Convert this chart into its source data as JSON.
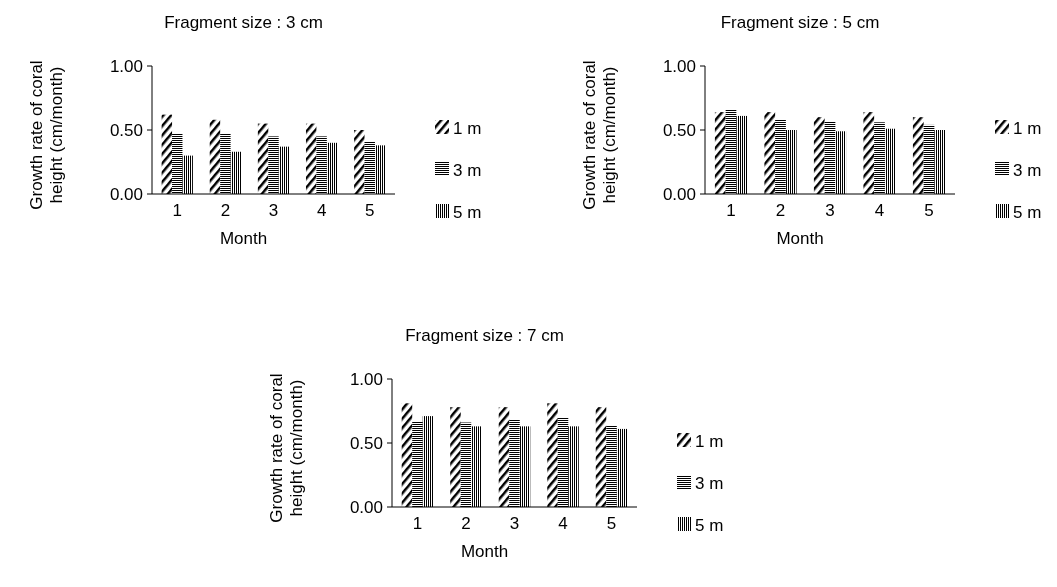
{
  "chart_data": [
    {
      "type": "bar",
      "title": "Fragment size : 3 cm",
      "xlabel": "Month",
      "ylabel": "Growth rate of coral height (cm/month)",
      "categories": [
        "1",
        "2",
        "3",
        "4",
        "5"
      ],
      "series": [
        {
          "name": "1 m",
          "color": "#000000",
          "values": [
            0.62,
            0.58,
            0.55,
            0.55,
            0.5
          ]
        },
        {
          "name": "3 m",
          "color": "#000000",
          "values": [
            0.47,
            0.47,
            0.45,
            0.45,
            0.41
          ]
        },
        {
          "name": "5 m",
          "color": "#000000",
          "values": [
            0.3,
            0.33,
            0.37,
            0.4,
            0.38
          ]
        }
      ],
      "ylim": [
        0,
        1
      ],
      "yticks": [
        {
          "value": 0,
          "label": "0.00"
        },
        {
          "value": 0.5,
          "label": "0.50"
        },
        {
          "value": 1,
          "label": "1.00"
        }
      ],
      "grid": false,
      "legend": "right"
    },
    {
      "type": "bar",
      "title": "Fragment size : 5 cm",
      "xlabel": "Month",
      "ylabel": "Growth rate of coral height (cm/month)",
      "categories": [
        "1",
        "2",
        "3",
        "4",
        "5"
      ],
      "series": [
        {
          "name": "1 m",
          "color": "#000000",
          "values": [
            0.64,
            0.64,
            0.6,
            0.64,
            0.6
          ]
        },
        {
          "name": "3 m",
          "color": "#000000",
          "values": [
            0.66,
            0.58,
            0.57,
            0.56,
            0.54
          ]
        },
        {
          "name": "5 m",
          "color": "#000000",
          "values": [
            0.61,
            0.5,
            0.49,
            0.51,
            0.5
          ]
        }
      ],
      "ylim": [
        0,
        1
      ],
      "yticks": [
        {
          "value": 0,
          "label": "0.00"
        },
        {
          "value": 0.5,
          "label": "0.50"
        },
        {
          "value": 1,
          "label": "1.00"
        }
      ],
      "grid": false,
      "legend": "right"
    },
    {
      "type": "bar",
      "title": "Fragment size : 7 cm",
      "xlabel": "Month",
      "ylabel": "Growth rate of coral height (cm/month)",
      "categories": [
        "1",
        "2",
        "3",
        "4",
        "5"
      ],
      "series": [
        {
          "name": "1 m",
          "color": "#000000",
          "values": [
            0.81,
            0.78,
            0.78,
            0.81,
            0.78
          ]
        },
        {
          "name": "3 m",
          "color": "#000000",
          "values": [
            0.67,
            0.66,
            0.68,
            0.7,
            0.64
          ]
        },
        {
          "name": "5 m",
          "color": "#000000",
          "values": [
            0.71,
            0.63,
            0.63,
            0.63,
            0.61
          ]
        }
      ],
      "ylim": [
        0,
        1
      ],
      "yticks": [
        {
          "value": 0,
          "label": "0.00"
        },
        {
          "value": 0.5,
          "label": "0.50"
        },
        {
          "value": 1,
          "label": "1.00"
        }
      ],
      "grid": false,
      "legend": "right"
    }
  ]
}
